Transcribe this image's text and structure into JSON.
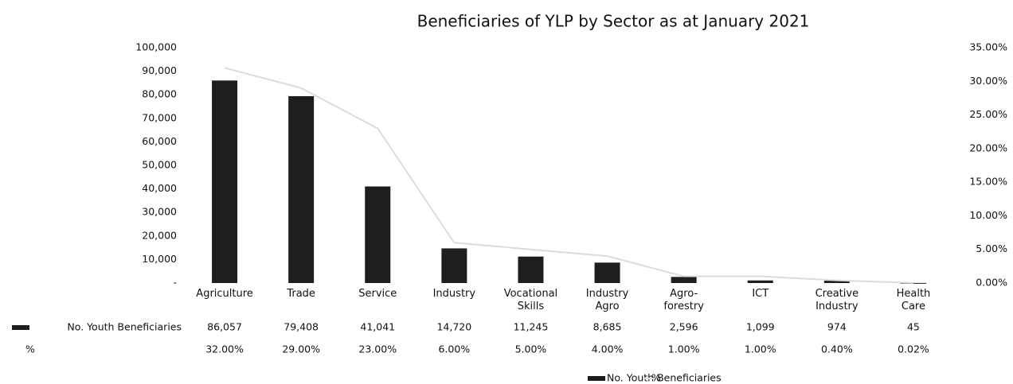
{
  "chart_data": {
    "type": "bar",
    "title": "Beneficiaries of YLP by Sector as at January 2021",
    "categories": [
      "Agriculture",
      "Trade",
      "Service",
      "Industry",
      "Vocational Skills",
      "Industry Agro",
      "Agro-forestry",
      "ICT",
      "Creative Industry",
      "Health Care"
    ],
    "series": [
      {
        "name": "No. Youth Beneficiaries",
        "type": "bar",
        "color": "#1e1e1e",
        "values": [
          86057,
          79408,
          41041,
          14720,
          11245,
          8685,
          2596,
          1099,
          974,
          45
        ],
        "value_labels": [
          "86,057",
          "79,408",
          "41,041",
          "14,720",
          "11,245",
          "8,685",
          "2,596",
          "1,099",
          "974",
          "45"
        ]
      },
      {
        "name": "%",
        "type": "line",
        "axis": "y2",
        "color": "#dcdcdc",
        "values": [
          32,
          29,
          23,
          6,
          5,
          4,
          1,
          1,
          0.4,
          0.02
        ],
        "value_labels": [
          "32.00%",
          "29.00%",
          "23.00%",
          "6.00%",
          "5.00%",
          "4.00%",
          "1.00%",
          "1.00%",
          "0.40%",
          "0.02%"
        ]
      }
    ],
    "ylim": [
      0,
      100000
    ],
    "yticks": [
      {
        "value": 0,
        "label": "-"
      },
      {
        "value": 10000,
        "label": "10,000"
      },
      {
        "value": 20000,
        "label": "20,000"
      },
      {
        "value": 30000,
        "label": "30,000"
      },
      {
        "value": 40000,
        "label": "40,000"
      },
      {
        "value": 50000,
        "label": "50,000"
      },
      {
        "value": 60000,
        "label": "60,000"
      },
      {
        "value": 70000,
        "label": "70,000"
      },
      {
        "value": 80000,
        "label": "80,000"
      },
      {
        "value": 90000,
        "label": "90,000"
      },
      {
        "value": 100000,
        "label": "100,000"
      }
    ],
    "y2lim": [
      0,
      35
    ],
    "y2ticks": [
      {
        "value": 0,
        "label": "0.00%"
      },
      {
        "value": 5,
        "label": "5.00%"
      },
      {
        "value": 10,
        "label": "10.00%"
      },
      {
        "value": 15,
        "label": "15.00%"
      },
      {
        "value": 20,
        "label": "20.00%"
      },
      {
        "value": 25,
        "label": "25.00%"
      },
      {
        "value": 30,
        "label": "30.00%"
      },
      {
        "value": 35,
        "label": "35.00%"
      }
    ],
    "legend": "bottom",
    "grid": false
  }
}
